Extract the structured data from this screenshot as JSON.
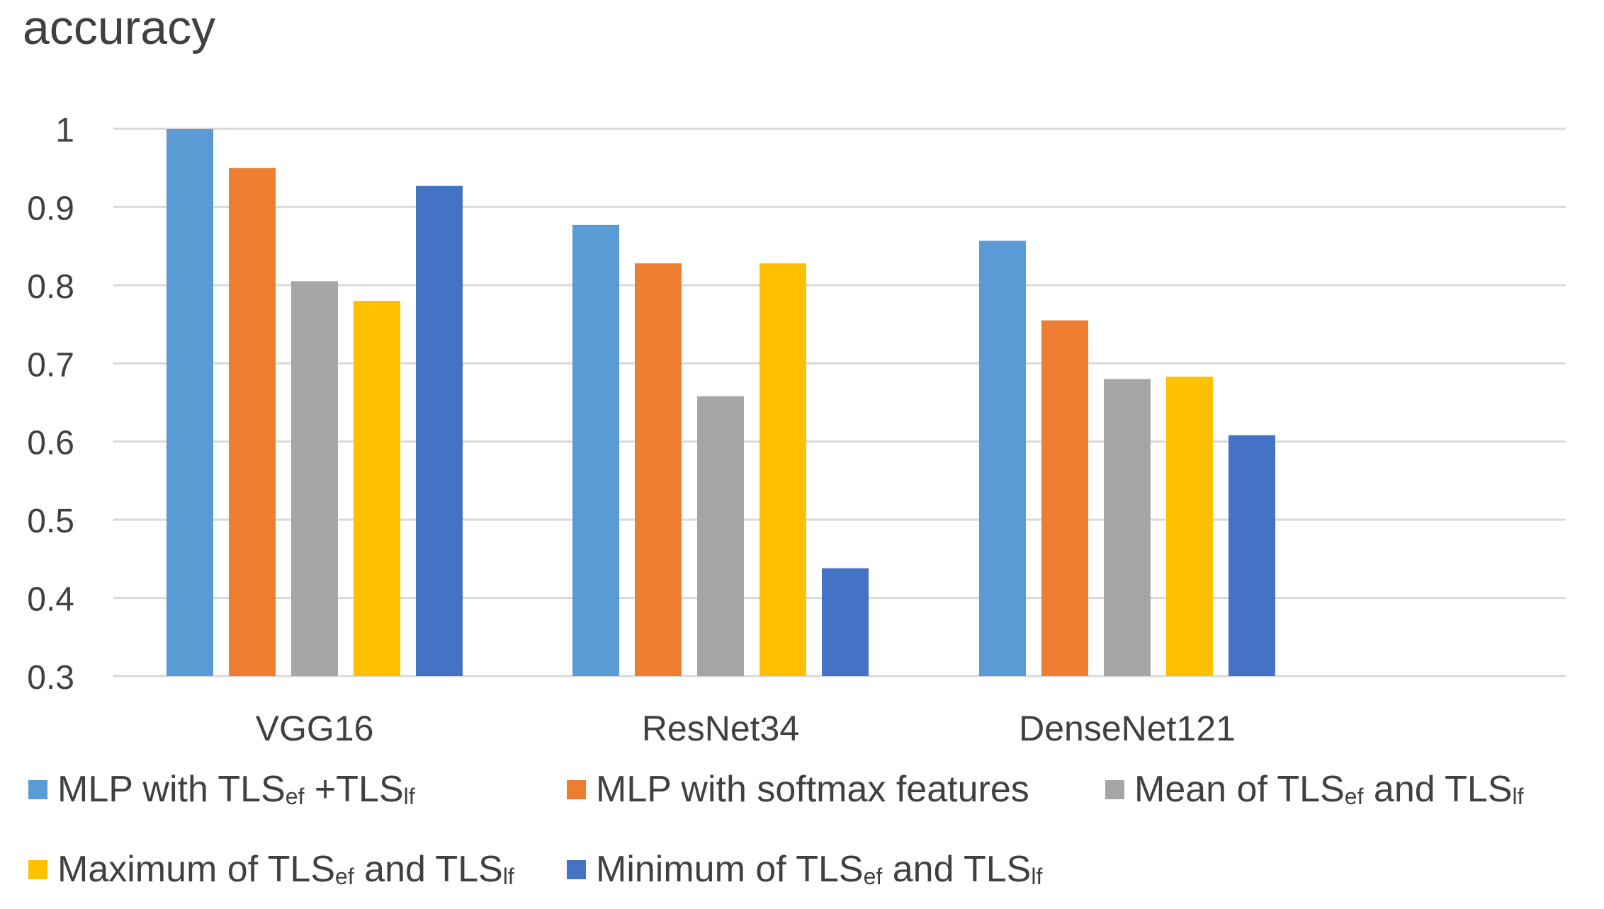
{
  "chart_data": {
    "type": "bar",
    "title": "accuracy",
    "xlabel": "",
    "ylabel": "accuracy",
    "ylim": [
      0.3,
      1
    ],
    "yticks": [
      "0.3",
      "0.4",
      "0.5",
      "0.6",
      "0.7",
      "0.8",
      "0.9",
      "1"
    ],
    "grid": true,
    "legend_position": "bottom",
    "categories": [
      "VGG16",
      "ResNet34",
      "DenseNet121"
    ],
    "series": [
      {
        "name": "MLP with TLSef +TLSlf",
        "label_parts": [
          "MLP with TLS",
          "ef",
          " +TLS",
          "lf"
        ],
        "color": "#5B9BD5",
        "values": [
          1.0,
          0.877,
          0.857
        ]
      },
      {
        "name": "MLP with softmax features",
        "label_parts": [
          "MLP with softmax features"
        ],
        "color": "#ED7D31",
        "values": [
          0.95,
          0.828,
          0.755
        ]
      },
      {
        "name": "Mean of TLSef and TLSlf",
        "label_parts": [
          "Mean of TLS",
          "ef",
          " and TLS",
          "lf"
        ],
        "color": "#A5A5A5",
        "values": [
          0.805,
          0.658,
          0.68
        ]
      },
      {
        "name": "Maximum of TLSef and TLSlf",
        "label_parts": [
          "Maximum of TLS",
          "ef",
          " and TLS",
          "lf"
        ],
        "color": "#FFC000",
        "values": [
          0.78,
          0.828,
          0.683
        ]
      },
      {
        "name": "Minimum of TLSef and TLSlf",
        "label_parts": [
          "Minimum of TLS",
          "ef",
          " and TLS",
          "lf"
        ],
        "color": "#4472C4",
        "values": [
          0.927,
          0.438,
          0.608
        ]
      }
    ]
  }
}
